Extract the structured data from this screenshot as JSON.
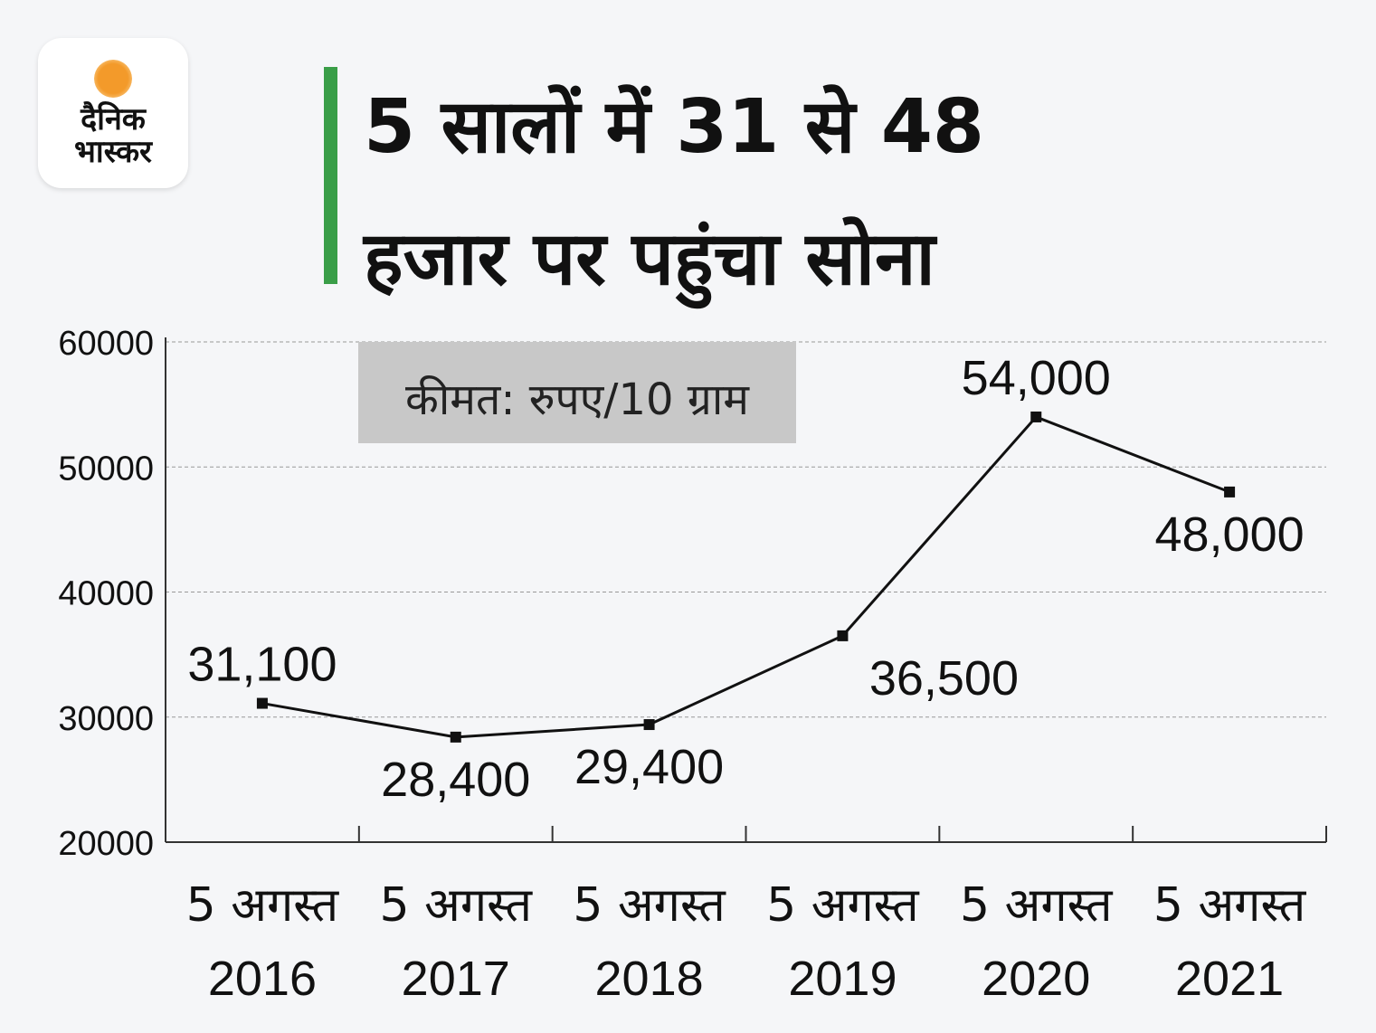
{
  "logo": {
    "line1": "दैनिक",
    "line2": "भास्कर",
    "sun_color": "#f39a2a"
  },
  "title": {
    "line1": "5 सालों में 31 से 48",
    "line2": "हजार पर पहुंचा सोना",
    "accent_color": "#3a9e48"
  },
  "chart_data": {
    "type": "line",
    "unit_label": "कीमत: रुपए/10 ग्राम",
    "categories": [
      [
        "5 अगस्त",
        "2016"
      ],
      [
        "5 अगस्त",
        "2017"
      ],
      [
        "5 अगस्त",
        "2018"
      ],
      [
        "5 अगस्त",
        "2019"
      ],
      [
        "5 अगस्त",
        "2020"
      ],
      [
        "5 अगस्त",
        "2021"
      ]
    ],
    "values": [
      31100,
      28400,
      29400,
      36500,
      54000,
      48000
    ],
    "data_labels": [
      "31,100",
      "28,400",
      "29,400",
      "36,500",
      "54,000",
      "48,000"
    ],
    "ylim": [
      20000,
      60000
    ],
    "yticks": [
      20000,
      30000,
      40000,
      50000,
      60000
    ],
    "ytick_labels": [
      "20000",
      "30000",
      "40000",
      "50000",
      "60000"
    ],
    "grid": true,
    "line_color": "#111111"
  }
}
